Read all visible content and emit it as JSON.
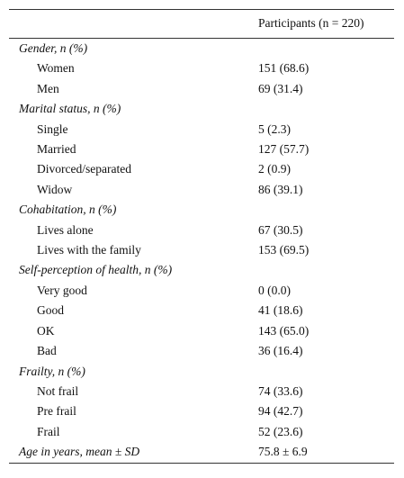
{
  "table": {
    "header": "Participants (n = 220)",
    "sections": [
      {
        "title": "Gender, n (%)",
        "rows": [
          [
            "Women",
            "151 (68.6)"
          ],
          [
            "Men",
            "69 (31.4)"
          ]
        ]
      },
      {
        "title": "Marital status, n (%)",
        "rows": [
          [
            "Single",
            "5 (2.3)"
          ],
          [
            "Married",
            "127 (57.7)"
          ],
          [
            "Divorced/separated",
            "2 (0.9)"
          ],
          [
            "Widow",
            "86 (39.1)"
          ]
        ]
      },
      {
        "title": "Cohabitation, n (%)",
        "rows": [
          [
            "Lives alone",
            "67 (30.5)"
          ],
          [
            "Lives with the family",
            "153 (69.5)"
          ]
        ]
      },
      {
        "title": "Self-perception of health, n (%)",
        "rows": [
          [
            "Very good",
            "0 (0.0)"
          ],
          [
            "Good",
            "41 (18.6)"
          ],
          [
            "OK",
            "143 (65.0)"
          ],
          [
            "Bad",
            "36 (16.4)"
          ]
        ]
      },
      {
        "title": "Frailty, n (%)",
        "rows": [
          [
            "Not frail",
            "74 (33.6)"
          ],
          [
            "Pre frail",
            "94 (42.7)"
          ],
          [
            "Frail",
            "52 (23.6)"
          ]
        ]
      }
    ],
    "final_row": [
      "Age in years, mean ± SD",
      "75.8 ± 6.9"
    ]
  }
}
